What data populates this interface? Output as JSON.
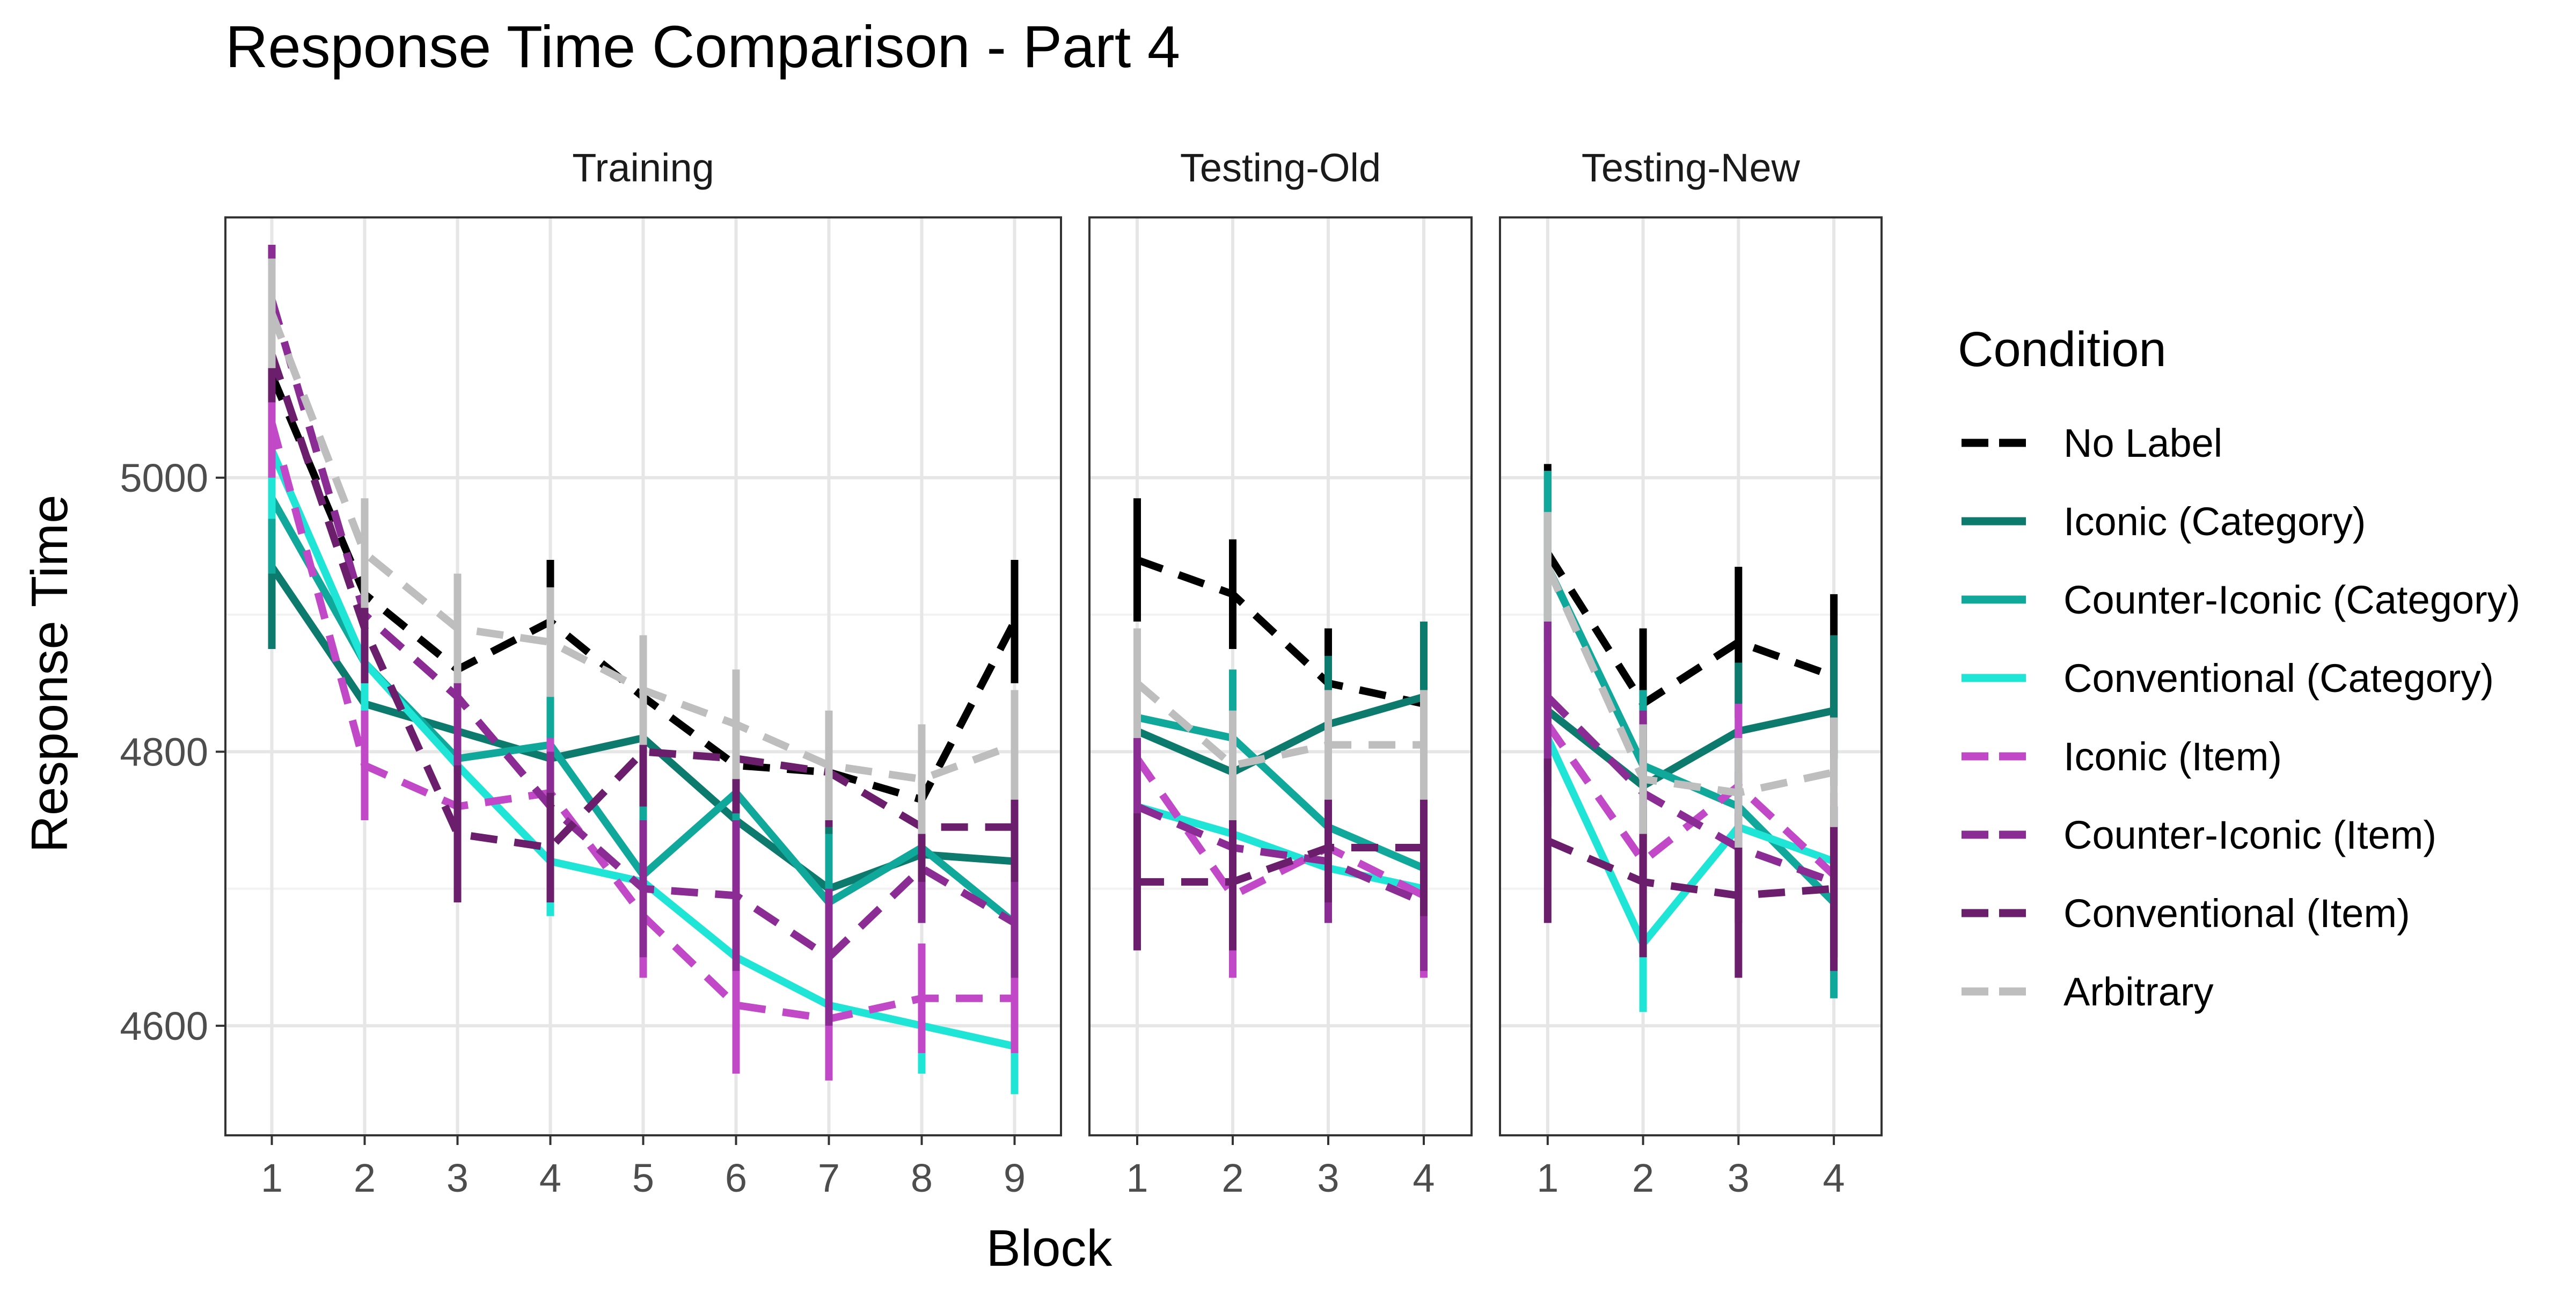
{
  "chart_data": {
    "type": "line",
    "title": "Response Time Comparison - Part 4",
    "xlabel": "Block",
    "ylabel": "Response Time",
    "ylim": [
      4520,
      5190
    ],
    "yticks": [
      4600,
      4800,
      5000
    ],
    "grid": true,
    "legend": {
      "title": "Condition",
      "position": "right"
    },
    "series": [
      {
        "name": "No Label",
        "color": "#000000",
        "dash": "dashed"
      },
      {
        "name": "Iconic (Category)",
        "color": "#0d7a6e",
        "dash": "solid"
      },
      {
        "name": "Counter-Iconic (Category)",
        "color": "#10a89a",
        "dash": "solid"
      },
      {
        "name": "Conventional (Category)",
        "color": "#1fe5d6",
        "dash": "solid"
      },
      {
        "name": "Iconic (Item)",
        "color": "#c148c6",
        "dash": "dashed"
      },
      {
        "name": "Counter-Iconic (Item)",
        "color": "#8b2c95",
        "dash": "dashed"
      },
      {
        "name": "Conventional (Item)",
        "color": "#6a1e6c",
        "dash": "dashed"
      },
      {
        "name": "Arbitrary",
        "color": "#bebebe",
        "dash": "dashed"
      }
    ],
    "panels": [
      {
        "name": "Training",
        "x": [
          1,
          2,
          3,
          4,
          5,
          6,
          7,
          8,
          9
        ],
        "values": {
          "No Label": [
            5075,
            4915,
            4860,
            4895,
            4840,
            4790,
            4785,
            4765,
            4895
          ],
          "Iconic (Category)": [
            4935,
            4835,
            4815,
            4795,
            4810,
            4750,
            4700,
            4725,
            4720
          ],
          "Counter-Iconic (Category)": [
            4985,
            4865,
            4795,
            4805,
            4710,
            4770,
            4690,
            4730,
            4675
          ],
          "Conventional (Category)": [
            5020,
            4865,
            4790,
            4720,
            4705,
            4650,
            4615,
            4600,
            4585
          ],
          "Iconic (Item)": [
            5040,
            4790,
            4760,
            4770,
            4680,
            4615,
            4605,
            4620,
            4620
          ],
          "Counter-Iconic (Item)": [
            5130,
            4900,
            4840,
            4760,
            4700,
            4695,
            4650,
            4715,
            4675
          ],
          "Conventional (Item)": [
            5090,
            4890,
            4740,
            4730,
            4800,
            4795,
            4785,
            4745,
            4745
          ],
          "Arbitrary": [
            5120,
            4945,
            4890,
            4880,
            4845,
            4820,
            4790,
            4780,
            4805
          ]
        },
        "errors": {
          "No Label": [
            45,
            40,
            40,
            45,
            40,
            40,
            40,
            40,
            45
          ],
          "Iconic (Category)": [
            60,
            50,
            45,
            45,
            45,
            55,
            45,
            50,
            50
          ],
          "Counter-Iconic (Category)": [
            55,
            45,
            45,
            50,
            50,
            55,
            50,
            50,
            50
          ],
          "Conventional (Category)": [
            50,
            50,
            45,
            40,
            45,
            45,
            35,
            35,
            35
          ],
          "Iconic (Item)": [
            40,
            40,
            45,
            40,
            45,
            50,
            45,
            40,
            40
          ],
          "Counter-Iconic (Item)": [
            40,
            50,
            55,
            40,
            50,
            55,
            50,
            40,
            40
          ],
          "Conventional (Item)": [
            35,
            40,
            50,
            40,
            40,
            40,
            40,
            40,
            40
          ],
          "Arbitrary": [
            40,
            40,
            40,
            40,
            40,
            40,
            40,
            40,
            40
          ]
        }
      },
      {
        "name": "Testing-Old",
        "x": [
          1,
          2,
          3,
          4
        ],
        "values": {
          "No Label": [
            4940,
            4915,
            4850,
            4835
          ],
          "Iconic (Category)": [
            4815,
            4785,
            4820,
            4840
          ],
          "Counter-Iconic (Category)": [
            4825,
            4810,
            4745,
            4715
          ],
          "Conventional (Category)": [
            4760,
            4740,
            4715,
            4700
          ],
          "Iconic (Item)": [
            4795,
            4695,
            4730,
            4695
          ],
          "Counter-Iconic (Item)": [
            4760,
            4730,
            4720,
            4690
          ],
          "Conventional (Item)": [
            4705,
            4705,
            4730,
            4730
          ],
          "Arbitrary": [
            4850,
            4790,
            4805,
            4805
          ]
        },
        "errors": {
          "No Label": [
            45,
            40,
            40,
            40
          ],
          "Iconic (Category)": [
            60,
            50,
            50,
            55
          ],
          "Counter-Iconic (Category)": [
            60,
            50,
            50,
            55
          ],
          "Conventional (Category)": [
            35,
            45,
            40,
            35
          ],
          "Iconic (Item)": [
            50,
            60,
            45,
            60
          ],
          "Counter-Iconic (Item)": [
            50,
            50,
            45,
            50
          ],
          "Conventional (Item)": [
            50,
            50,
            40,
            50
          ],
          "Arbitrary": [
            40,
            40,
            40,
            40
          ]
        }
      },
      {
        "name": "Testing-New",
        "x": [
          1,
          2,
          3,
          4
        ],
        "values": {
          "No Label": [
            4945,
            4835,
            4880,
            4855
          ],
          "Iconic (Category)": [
            4830,
            4775,
            4815,
            4830
          ],
          "Counter-Iconic (Category)": [
            4935,
            4790,
            4760,
            4690
          ],
          "Conventional (Category)": [
            4810,
            4660,
            4745,
            4720
          ],
          "Iconic (Item)": [
            4820,
            4720,
            4775,
            4710
          ],
          "Counter-Iconic (Item)": [
            4840,
            4770,
            4730,
            4705
          ],
          "Conventional (Item)": [
            4735,
            4705,
            4695,
            4700
          ],
          "Arbitrary": [
            4935,
            4780,
            4770,
            4785
          ]
        },
        "errors": {
          "No Label": [
            65,
            55,
            55,
            60
          ],
          "Iconic (Category)": [
            60,
            50,
            50,
            55
          ],
          "Counter-Iconic (Category)": [
            70,
            55,
            55,
            70
          ],
          "Conventional (Category)": [
            60,
            50,
            50,
            40
          ],
          "Iconic (Item)": [
            60,
            55,
            60,
            60
          ],
          "Counter-Iconic (Item)": [
            55,
            60,
            55,
            55
          ],
          "Conventional (Item)": [
            60,
            55,
            60,
            60
          ],
          "Arbitrary": [
            40,
            40,
            40,
            40
          ]
        }
      }
    ]
  }
}
